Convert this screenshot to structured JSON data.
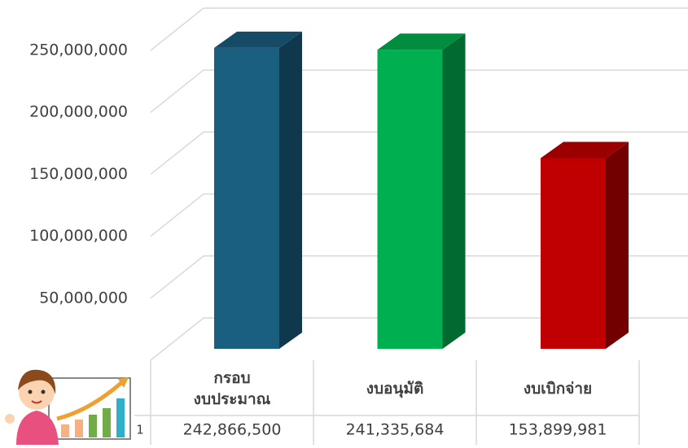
{
  "chart_data": {
    "type": "bar3d",
    "categories": [
      "กรอบ\nงบประมาณ",
      "งบอนุมัติ",
      "งบเบิกจ่าย"
    ],
    "series": [
      {
        "name": "1",
        "values": [
          242866500,
          241335684,
          153899981
        ],
        "value_labels": [
          "242,866,500",
          "241,335,684",
          "153,899,981"
        ],
        "colors": [
          "#1a5e80",
          "#00b050",
          "#c00000"
        ]
      }
    ],
    "ylim": [
      0,
      250000000
    ],
    "yticks": [
      {
        "value": 50000000,
        "label": "50,000,000"
      },
      {
        "value": 100000000,
        "label": "100,000,000"
      },
      {
        "value": 150000000,
        "label": "150,000,000"
      },
      {
        "value": 200000000,
        "label": "200,000,000"
      },
      {
        "value": 250000000,
        "label": "250,000,000"
      }
    ],
    "grid": true
  }
}
